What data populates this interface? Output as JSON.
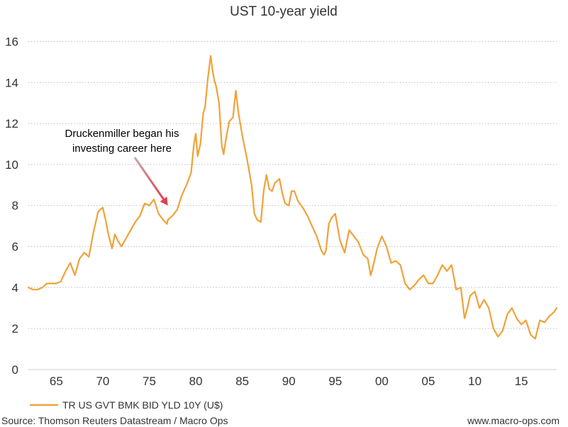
{
  "chart_data": {
    "type": "line",
    "title": "UST 10-year yield",
    "xlabel": "",
    "ylabel": "",
    "xlim": [
      1962,
      2018.8
    ],
    "ylim": [
      0,
      16.5
    ],
    "x_ticks": [
      {
        "value": 1965,
        "label": "65"
      },
      {
        "value": 1970,
        "label": "70"
      },
      {
        "value": 1975,
        "label": "75"
      },
      {
        "value": 1980,
        "label": "80"
      },
      {
        "value": 1985,
        "label": "85"
      },
      {
        "value": 1990,
        "label": "90"
      },
      {
        "value": 1995,
        "label": "95"
      },
      {
        "value": 2000,
        "label": "00"
      },
      {
        "value": 2005,
        "label": "05"
      },
      {
        "value": 2010,
        "label": "10"
      },
      {
        "value": 2015,
        "label": "15"
      }
    ],
    "y_ticks": [
      0,
      2,
      4,
      6,
      8,
      10,
      12,
      14,
      16
    ],
    "grid": "horizontal-dotted",
    "legend_position": "bottom-left",
    "series": [
      {
        "name": "TR US GVT BMK BID YLD 10Y (U$)",
        "color": "#f0a23a",
        "x": [
          1962.0,
          1962.5,
          1963.0,
          1963.5,
          1964.0,
          1964.5,
          1965.0,
          1965.5,
          1966.0,
          1966.5,
          1967.0,
          1967.5,
          1968.0,
          1968.5,
          1969.0,
          1969.5,
          1970.0,
          1970.3,
          1970.6,
          1971.0,
          1971.3,
          1971.6,
          1972.0,
          1972.5,
          1973.0,
          1973.5,
          1974.0,
          1974.5,
          1975.0,
          1975.5,
          1976.0,
          1976.5,
          1976.9,
          1977.0,
          1977.5,
          1978.0,
          1978.5,
          1979.0,
          1979.5,
          1979.8,
          1980.0,
          1980.2,
          1980.5,
          1980.8,
          1981.0,
          1981.3,
          1981.6,
          1981.8,
          1982.0,
          1982.2,
          1982.5,
          1982.8,
          1983.0,
          1983.3,
          1983.6,
          1984.0,
          1984.3,
          1984.6,
          1985.0,
          1985.5,
          1986.0,
          1986.3,
          1986.6,
          1987.0,
          1987.3,
          1987.6,
          1987.9,
          1988.2,
          1988.5,
          1989.0,
          1989.3,
          1989.6,
          1990.0,
          1990.3,
          1990.6,
          1991.0,
          1991.5,
          1992.0,
          1992.5,
          1993.0,
          1993.5,
          1993.8,
          1994.0,
          1994.3,
          1994.6,
          1995.0,
          1995.5,
          1996.0,
          1996.5,
          1997.0,
          1997.5,
          1998.0,
          1998.5,
          1998.8,
          1999.0,
          1999.5,
          2000.0,
          2000.5,
          2001.0,
          2001.5,
          2002.0,
          2002.5,
          2003.0,
          2003.5,
          2004.0,
          2004.5,
          2005.0,
          2005.5,
          2006.0,
          2006.5,
          2007.0,
          2007.5,
          2008.0,
          2008.5,
          2008.9,
          2009.2,
          2009.5,
          2010.0,
          2010.5,
          2011.0,
          2011.5,
          2012.0,
          2012.5,
          2013.0,
          2013.5,
          2014.0,
          2014.5,
          2015.0,
          2015.5,
          2016.0,
          2016.5,
          2017.0,
          2017.5,
          2018.0,
          2018.5,
          2018.8
        ],
        "values": [
          4.0,
          3.9,
          3.9,
          4.0,
          4.2,
          4.2,
          4.2,
          4.3,
          4.8,
          5.2,
          4.6,
          5.4,
          5.7,
          5.5,
          6.7,
          7.7,
          7.9,
          7.3,
          6.6,
          5.9,
          6.6,
          6.3,
          6.0,
          6.4,
          6.8,
          7.2,
          7.5,
          8.1,
          8.0,
          8.3,
          7.6,
          7.3,
          7.1,
          7.3,
          7.5,
          7.8,
          8.5,
          9.0,
          9.6,
          11.0,
          11.5,
          10.4,
          11.0,
          12.5,
          12.8,
          14.2,
          15.3,
          14.6,
          14.1,
          13.8,
          13.0,
          10.9,
          10.5,
          11.4,
          12.1,
          12.3,
          13.6,
          12.5,
          11.4,
          10.3,
          9.0,
          7.6,
          7.3,
          7.2,
          8.7,
          9.5,
          8.8,
          8.7,
          9.1,
          9.3,
          8.6,
          8.1,
          8.0,
          8.7,
          8.7,
          8.2,
          7.9,
          7.5,
          7.0,
          6.5,
          5.8,
          5.6,
          5.8,
          7.1,
          7.4,
          7.6,
          6.3,
          5.7,
          6.8,
          6.5,
          6.2,
          5.6,
          5.4,
          4.6,
          4.9,
          5.9,
          6.5,
          6.0,
          5.2,
          5.3,
          5.1,
          4.2,
          3.9,
          4.1,
          4.4,
          4.6,
          4.2,
          4.2,
          4.6,
          5.1,
          4.8,
          5.1,
          3.9,
          4.0,
          2.5,
          3.0,
          3.6,
          3.8,
          3.0,
          3.4,
          3.0,
          2.0,
          1.6,
          1.9,
          2.7,
          3.0,
          2.5,
          2.2,
          2.4,
          1.7,
          1.5,
          2.4,
          2.3,
          2.6,
          2.8,
          3.0
        ]
      }
    ],
    "annotation": {
      "lines": [
        "Druckenmiller began his",
        "investing career here"
      ],
      "arrow_to_x": 1977.0,
      "arrow_to_y": 8.0
    }
  },
  "legend": {
    "label": "TR US GVT BMK BID YLD 10Y (U$)"
  },
  "footer": {
    "source": "Source: Thomson Reuters Datastream / Macro Ops",
    "website": "www.macro-ops.com"
  }
}
